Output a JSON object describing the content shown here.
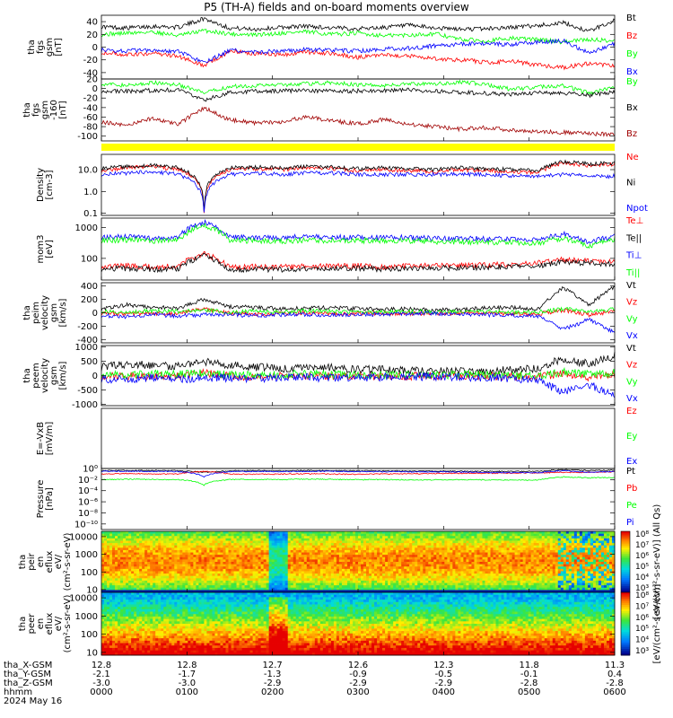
{
  "title": "P5 (TH-A) fields and on-board moments overview",
  "date_label": "2024 May 16",
  "chart_data": [
    {
      "type": "line",
      "ylabel": "tha fgs gsm [nT]",
      "ylim": [
        -50,
        50
      ],
      "yticks": [
        "40",
        "20",
        "0",
        "-20",
        "-40"
      ],
      "ytick_values": [
        40,
        20,
        0,
        -20,
        -40
      ],
      "series": [
        {
          "name": "Bt",
          "color": "#000000",
          "values": [
            32,
            30,
            33,
            31,
            45,
            30,
            28,
            31,
            33,
            30,
            29,
            31,
            34,
            30,
            28,
            29,
            31,
            34,
            38,
            25,
            42
          ]
        },
        {
          "name": "Bz",
          "color": "#ff0000",
          "values": [
            -8,
            -12,
            -10,
            -14,
            -30,
            -6,
            -10,
            -12,
            -8,
            -10,
            -16,
            -12,
            -14,
            -18,
            -20,
            -24,
            -22,
            -28,
            -32,
            -26,
            -30
          ]
        },
        {
          "name": "By",
          "color": "#00ff00",
          "values": [
            20,
            22,
            24,
            18,
            26,
            21,
            19,
            22,
            24,
            20,
            22,
            18,
            19,
            21,
            12,
            10,
            14,
            12,
            8,
            12,
            10
          ]
        },
        {
          "name": "Bx",
          "color": "#0000ff",
          "values": [
            -5,
            -6,
            -4,
            -7,
            -25,
            -5,
            -8,
            -6,
            -4,
            -5,
            -6,
            -3,
            -2,
            2,
            5,
            6,
            4,
            8,
            10,
            -10,
            6
          ]
        }
      ]
    },
    {
      "type": "line",
      "ylabel": "tha fgs gsm -160 [nT]",
      "ylim": [
        -110,
        20
      ],
      "yticks": [
        "20",
        "0",
        "-20",
        "-40",
        "-60",
        "-80",
        "-100"
      ],
      "ytick_values": [
        20,
        0,
        -20,
        -40,
        -60,
        -80,
        -100
      ],
      "series": [
        {
          "name": "By",
          "color": "#00ff00",
          "values": [
            10,
            6,
            12,
            8,
            -10,
            4,
            6,
            8,
            10,
            12,
            8,
            6,
            10,
            9,
            14,
            8,
            -2,
            4,
            6,
            -10,
            2
          ]
        },
        {
          "name": "Bx",
          "color": "#000000",
          "values": [
            -5,
            -6,
            -4,
            -3,
            -25,
            -8,
            -6,
            -5,
            -4,
            -6,
            -5,
            -4,
            -3,
            -6,
            -8,
            -10,
            -12,
            -9,
            -10,
            -14,
            -8
          ]
        },
        {
          "name": "Bz",
          "color": "#a00000",
          "values": [
            -70,
            -78,
            -62,
            -75,
            -40,
            -66,
            -72,
            -70,
            -60,
            -68,
            -74,
            -65,
            -75,
            -80,
            -85,
            -82,
            -88,
            -90,
            -92,
            -95,
            -96
          ]
        }
      ]
    },
    {
      "type": "line",
      "ylabel": "Density [cm-3]",
      "yscale": "log",
      "ylim": [
        0.08,
        50
      ],
      "yticks": [
        "10.0",
        "1.0",
        "0.1"
      ],
      "ytick_values": [
        10,
        1,
        0.1
      ],
      "series": [
        {
          "name": "Ne",
          "color": "#ff0000",
          "values": [
            9,
            12,
            14,
            10,
            0.12,
            10,
            11,
            10,
            12,
            11,
            9,
            10,
            9,
            8,
            10,
            9,
            8,
            7,
            20,
            15,
            18
          ]
        },
        {
          "name": "Ni",
          "color": "#000000",
          "values": [
            11,
            14,
            16,
            12,
            0.15,
            12,
            13,
            12,
            14,
            13,
            11,
            12,
            11,
            10,
            12,
            11,
            10,
            9,
            24,
            18,
            20
          ]
        },
        {
          "name": "Npot",
          "color": "#0000ff",
          "values": [
            6,
            7,
            8,
            6,
            0.12,
            6,
            7,
            6,
            7,
            7,
            6,
            6,
            6,
            6,
            6,
            6,
            5,
            5,
            6,
            5,
            5
          ]
        }
      ]
    },
    {
      "type": "line",
      "ylabel": "mom3 [eV]",
      "yscale": "log",
      "ylim": [
        20,
        2000
      ],
      "yticks": [
        "1000",
        "100"
      ],
      "ytick_values": [
        1000,
        100
      ],
      "series": [
        {
          "name": "Te⊥",
          "color": "#ff0000",
          "values": [
            55,
            58,
            52,
            56,
            140,
            50,
            54,
            52,
            55,
            56,
            58,
            54,
            56,
            58,
            60,
            62,
            64,
            70,
            90,
            80,
            75
          ]
        },
        {
          "name": "Te||",
          "color": "#000000",
          "values": [
            45,
            48,
            44,
            46,
            120,
            42,
            45,
            44,
            46,
            47,
            48,
            45,
            46,
            48,
            50,
            52,
            54,
            58,
            75,
            70,
            65
          ]
        },
        {
          "name": "Ti⊥",
          "color": "#0000ff",
          "values": [
            480,
            500,
            460,
            490,
            1500,
            470,
            480,
            460,
            500,
            470,
            490,
            460,
            470,
            450,
            440,
            430,
            420,
            410,
            600,
            300,
            550
          ]
        },
        {
          "name": "Ti||",
          "color": "#00ff00",
          "values": [
            380,
            400,
            370,
            390,
            1200,
            370,
            380,
            360,
            390,
            370,
            380,
            360,
            370,
            350,
            340,
            330,
            320,
            310,
            450,
            250,
            420
          ]
        }
      ]
    },
    {
      "type": "line",
      "ylabel": "tha peim velocity gsm [km/s]",
      "ylim": [
        -450,
        450
      ],
      "yticks": [
        "400",
        "200",
        "0",
        "-200",
        "-400"
      ],
      "ytick_values": [
        400,
        200,
        0,
        -200,
        -400
      ],
      "series": [
        {
          "name": "Vt",
          "color": "#000000",
          "values": [
            60,
            120,
            80,
            70,
            200,
            90,
            80,
            60,
            70,
            80,
            60,
            50,
            60,
            40,
            50,
            70,
            80,
            60,
            380,
            120,
            400
          ]
        },
        {
          "name": "Vz",
          "color": "#ff0000",
          "values": [
            -10,
            -20,
            -5,
            -15,
            60,
            -10,
            -20,
            -10,
            -5,
            -15,
            -10,
            -5,
            -10,
            -8,
            -5,
            -10,
            -15,
            -20,
            40,
            -30,
            20
          ]
        },
        {
          "name": "Vy",
          "color": "#00ff00",
          "values": [
            20,
            10,
            30,
            20,
            40,
            10,
            20,
            15,
            30,
            20,
            10,
            15,
            20,
            10,
            15,
            20,
            10,
            5,
            60,
            20,
            50
          ]
        },
        {
          "name": "Vx",
          "color": "#0000ff",
          "values": [
            -40,
            -60,
            -20,
            -50,
            -30,
            -30,
            -40,
            -30,
            -25,
            -35,
            -30,
            -20,
            -15,
            -10,
            -20,
            -30,
            -40,
            -50,
            -250,
            -100,
            -300
          ]
        }
      ]
    },
    {
      "type": "line",
      "ylabel": "tha peem velocity gsm [km/s]",
      "ylim": [
        -1050,
        1050
      ],
      "yticks": [
        "1000",
        "500",
        "0",
        "-500",
        "-1000"
      ],
      "ytick_values": [
        1000,
        500,
        0,
        -500,
        -1000
      ],
      "series": [
        {
          "name": "Vt",
          "color": "#000000",
          "values": [
            300,
            400,
            350,
            320,
            500,
            350,
            300,
            250,
            300,
            280,
            220,
            200,
            180,
            150,
            160,
            170,
            200,
            250,
            600,
            400,
            700
          ]
        },
        {
          "name": "Vz",
          "color": "#ff0000",
          "values": [
            -20,
            -40,
            -10,
            -30,
            100,
            -20,
            -30,
            -20,
            -10,
            -30,
            -20,
            -10,
            -20,
            -10,
            -10,
            -20,
            -30,
            -40,
            80,
            -50,
            40
          ]
        },
        {
          "name": "Vy",
          "color": "#00ff00",
          "values": [
            40,
            20,
            60,
            40,
            100,
            20,
            40,
            30,
            60,
            40,
            20,
            30,
            40,
            20,
            30,
            40,
            20,
            10,
            120,
            40,
            100
          ]
        },
        {
          "name": "Vx",
          "color": "#0000ff",
          "values": [
            -100,
            -150,
            -60,
            -120,
            -80,
            -80,
            -100,
            -70,
            -60,
            -90,
            -80,
            -50,
            -40,
            -30,
            -50,
            -80,
            -100,
            -150,
            -600,
            -300,
            -700
          ]
        }
      ]
    },
    {
      "type": "line",
      "ylabel": "E=-VxB [mV/m]",
      "ylim": [
        -10,
        10
      ],
      "yticks": [],
      "ytick_values": [],
      "series": [
        {
          "name": "Ez",
          "color": "#ff0000",
          "values": []
        },
        {
          "name": "Ey",
          "color": "#00ff00",
          "values": []
        },
        {
          "name": "Ex",
          "color": "#0000ff",
          "values": []
        }
      ]
    },
    {
      "type": "line",
      "ylabel": "Pressure [nPa]",
      "yscale": "log",
      "ylim": [
        1e-11,
        1
      ],
      "yticks": [
        "10⁰",
        "10⁻²",
        "10⁻⁴",
        "10⁻⁶",
        "10⁻⁸",
        "10⁻¹⁰"
      ],
      "ytick_values": [
        1,
        0.01,
        0.0001,
        1e-06,
        1e-08,
        1e-10
      ],
      "series": [
        {
          "name": "Pt",
          "color": "#000000",
          "values": [
            0.4,
            0.45,
            0.42,
            0.4,
            0.2,
            0.38,
            0.4,
            0.38,
            0.42,
            0.4,
            0.38,
            0.36,
            0.35,
            0.34,
            0.33,
            0.32,
            0.3,
            0.3,
            0.6,
            0.4,
            0.5
          ]
        },
        {
          "name": "Pb",
          "color": "#ff0000",
          "values": [
            0.1,
            0.12,
            0.11,
            0.1,
            0.3,
            0.1,
            0.09,
            0.1,
            0.11,
            0.1,
            0.09,
            0.1,
            0.11,
            0.12,
            0.13,
            0.14,
            0.15,
            0.16,
            0.2,
            0.2,
            0.25
          ]
        },
        {
          "name": "Pe",
          "color": "#00ff00",
          "values": [
            0.01,
            0.012,
            0.011,
            0.01,
            0.001,
            0.01,
            0.011,
            0.01,
            0.012,
            0.011,
            0.01,
            0.01,
            0.009,
            0.009,
            0.01,
            0.009,
            0.008,
            0.008,
            0.03,
            0.02,
            0.025
          ]
        },
        {
          "name": "Pi",
          "color": "#0000ff",
          "values": [
            0.3,
            0.32,
            0.3,
            0.28,
            0.03,
            0.28,
            0.3,
            0.28,
            0.31,
            0.3,
            0.28,
            0.26,
            0.25,
            0.24,
            0.22,
            0.2,
            0.18,
            0.17,
            0.4,
            0.2,
            0.3
          ]
        }
      ]
    },
    {
      "type": "heatmap",
      "ylabel": "tha peir en eflux eV/ (cm²-s-sr-eV)",
      "yscale": "log",
      "ylim": [
        7,
        20000
      ],
      "yticks": [
        "10000",
        "1000",
        "100",
        "10"
      ],
      "ytick_values": [
        10000,
        1000,
        100,
        10
      ],
      "colorbar_label": "[eV/(cm²-s-sr-eV)] (All Qs)",
      "colorbar_ticks": [
        "10⁸",
        "10⁷",
        "10⁶",
        "10⁵",
        "10⁴",
        "10³"
      ]
    },
    {
      "type": "heatmap",
      "ylabel": "tha peer en eflux eV/ (cm²-s-sr-eV)",
      "yscale": "log",
      "ylim": [
        7,
        20000
      ],
      "yticks": [
        "10000",
        "1000",
        "100",
        "10"
      ],
      "ytick_values": [
        10000,
        1000,
        100,
        10
      ],
      "colorbar_label": "[eV/(cm²-s-sr-eV)]",
      "colorbar_ticks": [
        "10⁸",
        "10⁷",
        "10⁶",
        "10⁵",
        "10⁴",
        "10³"
      ]
    }
  ],
  "xaxis": {
    "row_labels": [
      "tha_X-GSM",
      "tha_Y-GSM",
      "tha_Z-GSM",
      "hhmm"
    ],
    "ticks": [
      {
        "x": "12.8",
        "y": "-2.1",
        "z": "-3.0",
        "t": "0000"
      },
      {
        "x": "12.8",
        "y": "-1.7",
        "z": "-3.0",
        "t": "0100"
      },
      {
        "x": "12.7",
        "y": "-1.3",
        "z": "-2.9",
        "t": "0200"
      },
      {
        "x": "12.6",
        "y": "-0.9",
        "z": "-2.9",
        "t": "0300"
      },
      {
        "x": "12.3",
        "y": "-0.5",
        "z": "-2.9",
        "t": "0400"
      },
      {
        "x": "11.8",
        "y": "-0.1",
        "z": "-2.8",
        "t": "0500"
      },
      {
        "x": "11.3",
        "y": "0.4",
        "z": "-2.8",
        "t": "0600"
      }
    ]
  }
}
